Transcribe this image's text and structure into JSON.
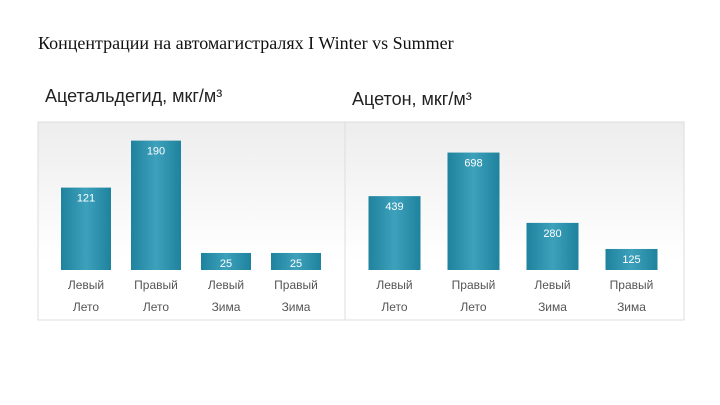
{
  "title": "Концентрации на автомагистралях I Winter vs Summer",
  "chart_data": [
    {
      "type": "bar",
      "title": "Ацетальдегид, мкг/м³",
      "categories": [
        [
          "Левый",
          "Лето"
        ],
        [
          "Правый",
          "Лето"
        ],
        [
          "Левый",
          "Зима"
        ],
        [
          "Правый",
          "Зима"
        ]
      ],
      "values": [
        121,
        190,
        25,
        25
      ],
      "color": "#2394b3",
      "ylim": [
        0,
        210
      ]
    },
    {
      "type": "bar",
      "title": "Ацетон, мкг/м³",
      "categories": [
        [
          "Левый",
          "Лето"
        ],
        [
          "Правый",
          "Лето"
        ],
        [
          "Левый",
          "Зима"
        ],
        [
          "Правый",
          "Зима"
        ]
      ],
      "values": [
        439,
        698,
        280,
        125
      ],
      "color": "#2394b3",
      "ylim": [
        0,
        850
      ]
    }
  ]
}
